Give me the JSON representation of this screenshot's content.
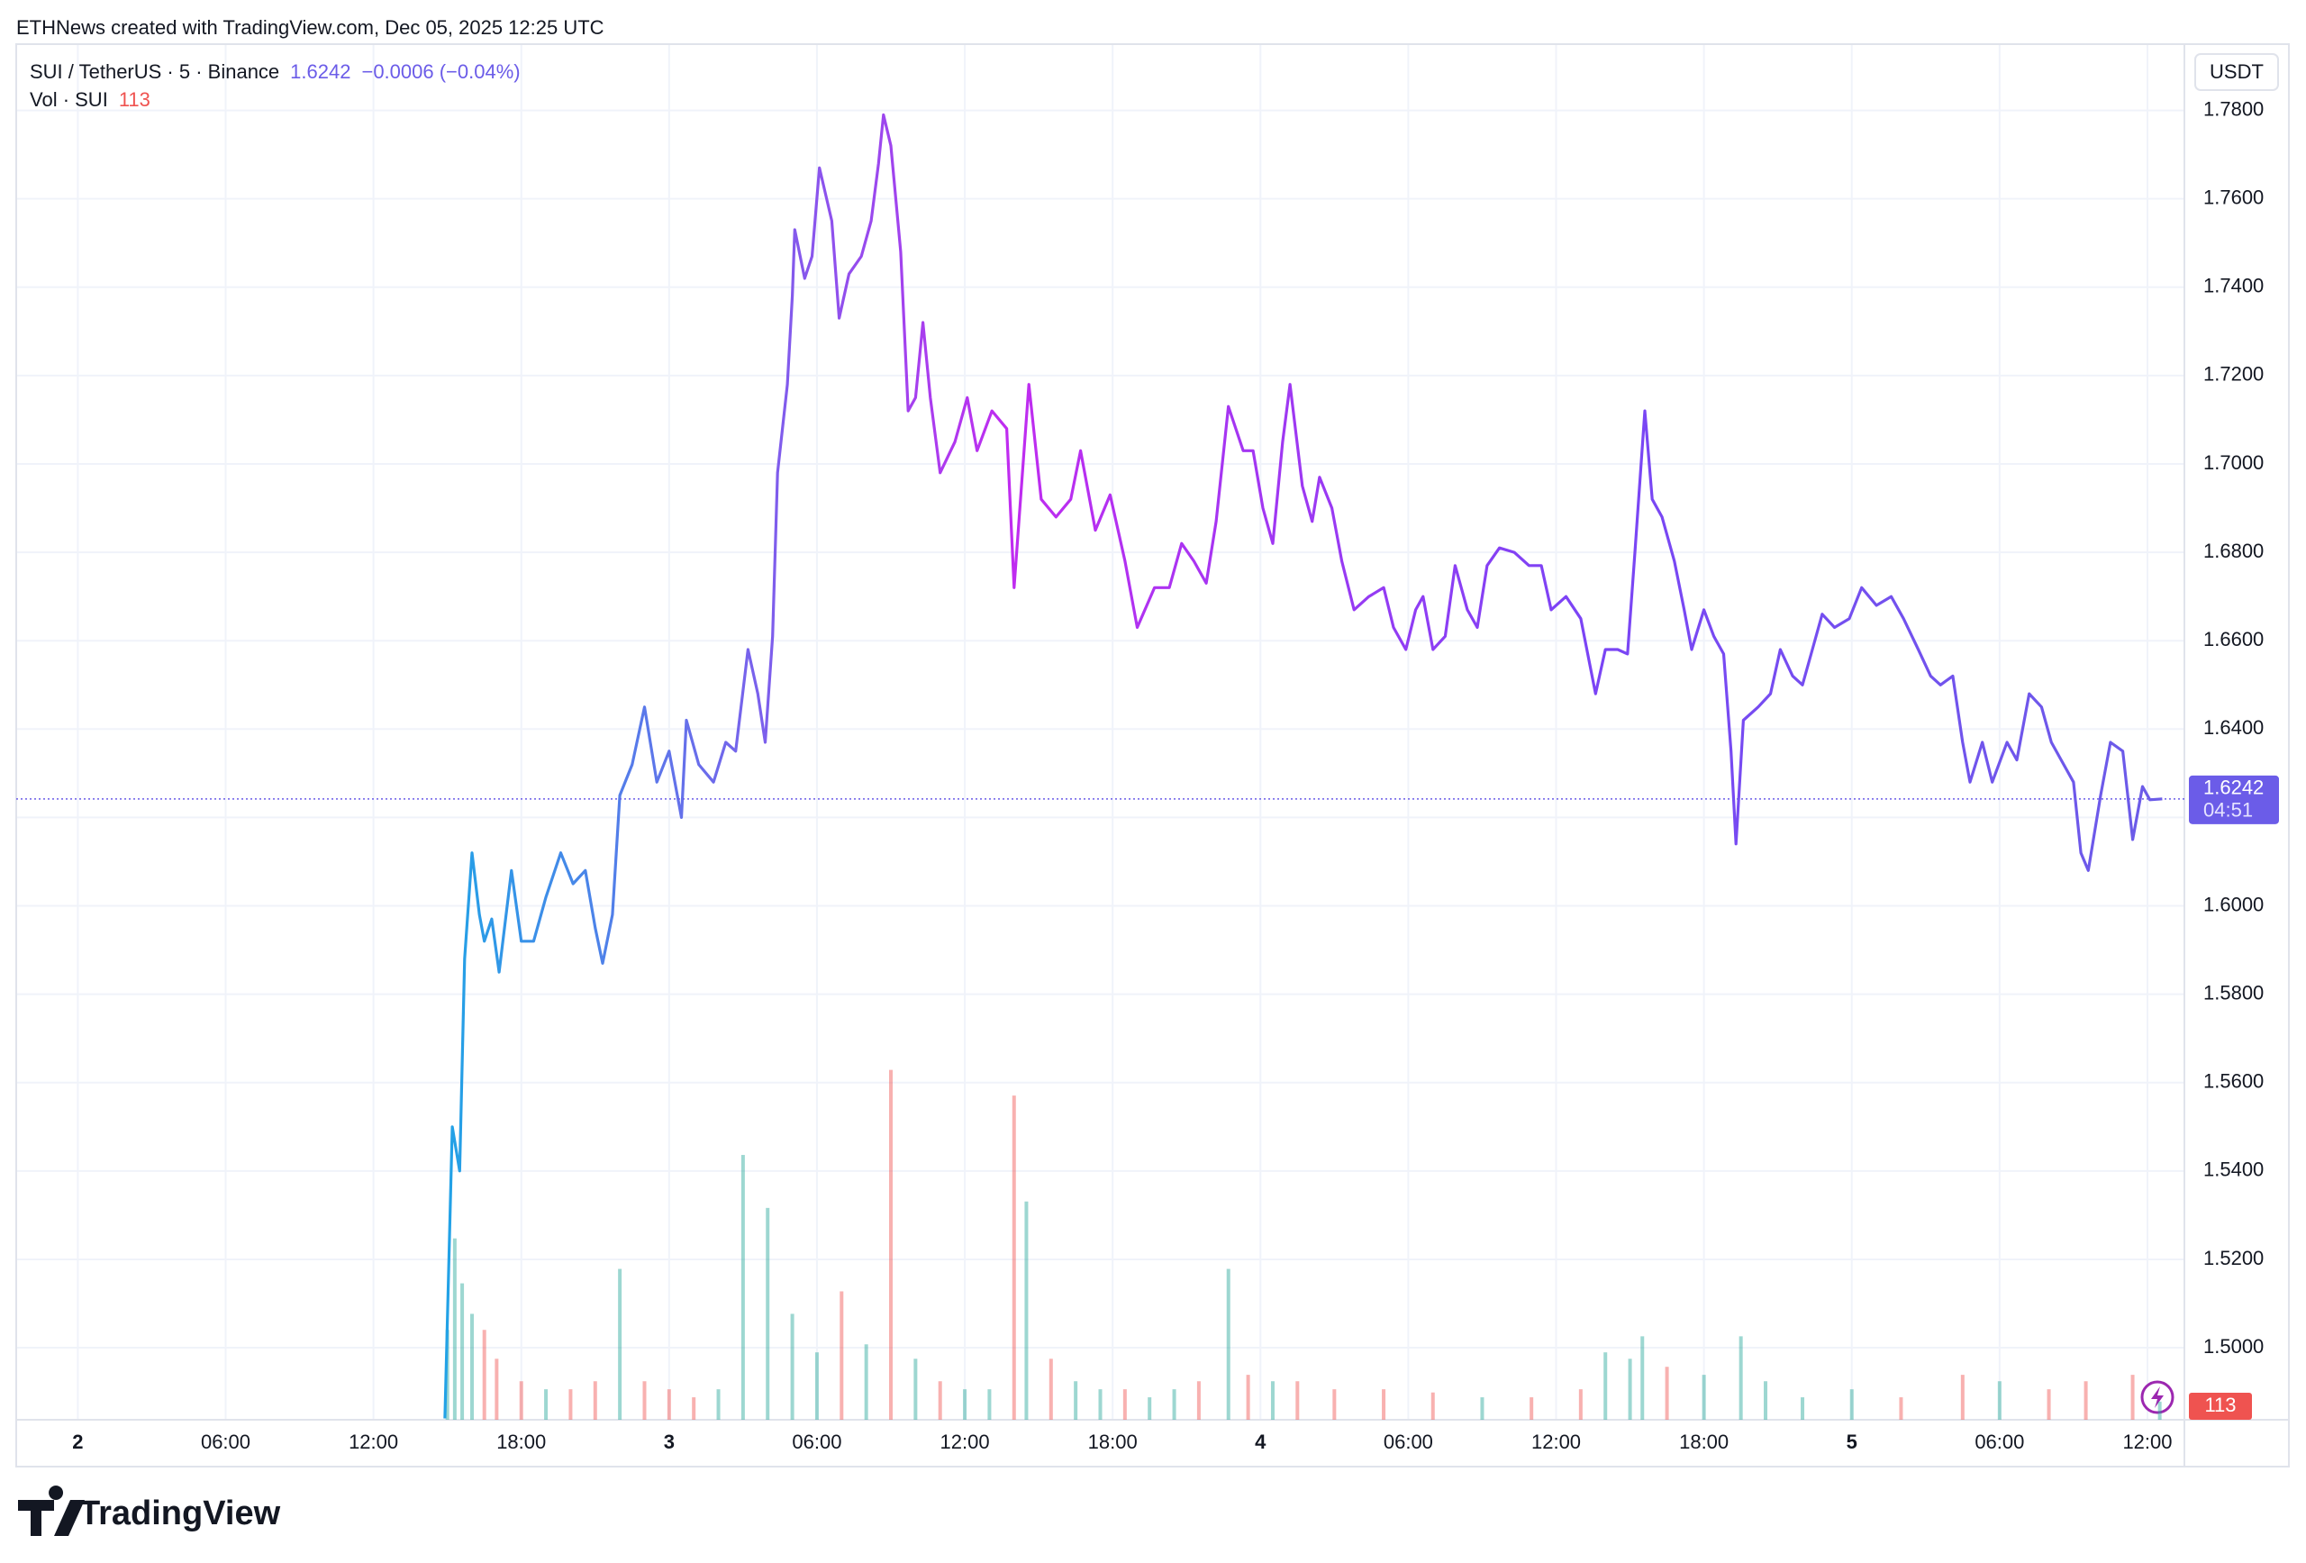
{
  "chart_data": {
    "type": "line",
    "credit": "ETHNews created with TradingView.com, Dec 05, 2025 12:25 UTC",
    "symbol": "SUI / TetherUS · 5 · Binance",
    "last_price": 1.6242,
    "change": "−0.0006 (−0.04%)",
    "countdown": "04:51",
    "currency": "USDT",
    "brand": "TradingView",
    "xlim": [
      -2.5,
      85.5
    ],
    "xticks": [
      {
        "value": 0,
        "label": "2"
      },
      {
        "value": 6,
        "label": "06:00"
      },
      {
        "value": 12,
        "label": "12:00"
      },
      {
        "value": 18,
        "label": "18:00"
      },
      {
        "value": 24,
        "label": "3"
      },
      {
        "value": 30,
        "label": "06:00"
      },
      {
        "value": 36,
        "label": "12:00"
      },
      {
        "value": 42,
        "label": "18:00"
      },
      {
        "value": 48,
        "label": "4"
      },
      {
        "value": 54,
        "label": "06:00"
      },
      {
        "value": 60,
        "label": "12:00"
      },
      {
        "value": 66,
        "label": "18:00"
      },
      {
        "value": 72,
        "label": "5"
      },
      {
        "value": 78,
        "label": "06:00"
      },
      {
        "value": 84,
        "label": "12:00"
      }
    ],
    "ylim": [
      1.4837,
      1.795
    ],
    "yticks": [
      {
        "value": 1.5,
        "label": "1.5000"
      },
      {
        "value": 1.52,
        "label": "1.5200"
      },
      {
        "value": 1.54,
        "label": "1.5400"
      },
      {
        "value": 1.56,
        "label": "1.5600"
      },
      {
        "value": 1.58,
        "label": "1.5800"
      },
      {
        "value": 1.6,
        "label": "1.6000"
      },
      {
        "value": 1.62,
        "label": "1.6200"
      },
      {
        "value": 1.64,
        "label": "1.6400"
      },
      {
        "value": 1.66,
        "label": "1.6600"
      },
      {
        "value": 1.68,
        "label": "1.6800"
      },
      {
        "value": 1.7,
        "label": "1.7000"
      },
      {
        "value": 1.72,
        "label": "1.7200"
      },
      {
        "value": 1.74,
        "label": "1.7400"
      },
      {
        "value": 1.76,
        "label": "1.7600"
      },
      {
        "value": 1.78,
        "label": "1.7800"
      }
    ],
    "grid": true,
    "gradient": [
      "#1ea5e6",
      "#c02cf0",
      "#7b44f5",
      "#6b5ce8"
    ],
    "series": [
      {
        "name": "SUI / TetherUS",
        "color": "#6b5ce8",
        "x": [
          14.9,
          15.2,
          15.5,
          15.7,
          16.0,
          16.3,
          16.5,
          16.8,
          17.1,
          17.6,
          18.0,
          18.5,
          19.0,
          19.6,
          20.1,
          20.6,
          21.0,
          21.3,
          21.7,
          22.0,
          22.5,
          23.0,
          23.5,
          24.0,
          24.5,
          24.7,
          25.2,
          25.8,
          26.3,
          26.7,
          27.2,
          27.6,
          27.9,
          28.2,
          28.4,
          28.8,
          29.0,
          29.1,
          29.5,
          29.8,
          30.1,
          30.6,
          30.9,
          31.3,
          31.8,
          32.2,
          32.5,
          32.7,
          33.0,
          33.4,
          33.7,
          34.0,
          34.3,
          34.6,
          35.0,
          35.6,
          36.1,
          36.5,
          37.1,
          37.7,
          38.0,
          38.6,
          39.1,
          39.7,
          40.3,
          40.7,
          41.3,
          41.9,
          42.5,
          43.0,
          43.7,
          44.3,
          44.8,
          45.3,
          45.8,
          46.2,
          46.7,
          47.3,
          47.7,
          48.1,
          48.5,
          48.9,
          49.2,
          49.7,
          50.1,
          50.4,
          50.9,
          51.3,
          51.8,
          52.4,
          53.0,
          53.4,
          53.9,
          54.3,
          54.6,
          55.0,
          55.5,
          55.9,
          56.4,
          56.8,
          57.2,
          57.7,
          58.3,
          58.9,
          59.4,
          59.8,
          60.4,
          61.0,
          61.6,
          62.0,
          62.5,
          62.9,
          63.2,
          63.6,
          63.9,
          64.3,
          64.8,
          65.2,
          65.5,
          66.0,
          66.4,
          66.8,
          67.1,
          67.3,
          67.6,
          68.2,
          68.7,
          69.1,
          69.6,
          70.0,
          70.4,
          70.8,
          71.3,
          71.9,
          72.4,
          73.0,
          73.6,
          74.1,
          74.7,
          75.2,
          75.6,
          76.1,
          76.5,
          76.8,
          77.3,
          77.7,
          78.3,
          78.7,
          79.2,
          79.7,
          80.1,
          80.5,
          81.0,
          81.3,
          81.6,
          82.1,
          82.5,
          83.0,
          83.4,
          83.8,
          84.1,
          84.6
        ],
        "values": [
          1.484,
          1.55,
          1.54,
          1.588,
          1.612,
          1.598,
          1.592,
          1.597,
          1.585,
          1.608,
          1.592,
          1.592,
          1.602,
          1.612,
          1.605,
          1.608,
          1.595,
          1.587,
          1.598,
          1.625,
          1.632,
          1.645,
          1.628,
          1.635,
          1.62,
          1.642,
          1.632,
          1.628,
          1.637,
          1.635,
          1.658,
          1.648,
          1.637,
          1.661,
          1.698,
          1.718,
          1.738,
          1.753,
          1.742,
          1.747,
          1.767,
          1.755,
          1.733,
          1.743,
          1.747,
          1.755,
          1.768,
          1.779,
          1.772,
          1.748,
          1.712,
          1.715,
          1.732,
          1.715,
          1.698,
          1.705,
          1.715,
          1.703,
          1.712,
          1.708,
          1.672,
          1.718,
          1.692,
          1.688,
          1.692,
          1.703,
          1.685,
          1.693,
          1.678,
          1.663,
          1.672,
          1.672,
          1.682,
          1.678,
          1.673,
          1.687,
          1.713,
          1.703,
          1.703,
          1.69,
          1.682,
          1.705,
          1.718,
          1.695,
          1.687,
          1.697,
          1.69,
          1.678,
          1.667,
          1.67,
          1.672,
          1.663,
          1.658,
          1.667,
          1.67,
          1.658,
          1.661,
          1.677,
          1.667,
          1.663,
          1.677,
          1.681,
          1.68,
          1.677,
          1.677,
          1.667,
          1.67,
          1.665,
          1.648,
          1.658,
          1.658,
          1.657,
          1.68,
          1.712,
          1.692,
          1.688,
          1.678,
          1.667,
          1.658,
          1.667,
          1.661,
          1.657,
          1.635,
          1.614,
          1.642,
          1.645,
          1.648,
          1.658,
          1.652,
          1.65,
          1.658,
          1.666,
          1.663,
          1.665,
          1.672,
          1.668,
          1.67,
          1.665,
          1.658,
          1.652,
          1.65,
          1.652,
          1.637,
          1.628,
          1.637,
          1.628,
          1.637,
          1.633,
          1.648,
          1.645,
          1.637,
          1.633,
          1.628,
          1.612,
          1.608,
          1.625,
          1.637,
          1.635,
          1.615,
          1.627,
          1.624,
          1.6242
        ]
      }
    ],
    "volume": {
      "name": "Vol · SUI",
      "up_color": "#26a69a",
      "down_color": "#ef5350",
      "vlim": [
        0,
        3000
      ],
      "x": [
        15.0,
        15.3,
        15.6,
        16.0,
        16.5,
        17.0,
        18,
        19,
        20,
        21,
        22,
        23,
        24,
        25,
        26,
        27,
        28,
        29,
        30,
        31,
        32,
        33,
        34,
        35,
        36,
        37,
        38,
        38.5,
        39.5,
        40.5,
        41.5,
        42.5,
        43.5,
        44.5,
        45.5,
        46.7,
        47.5,
        48.5,
        49.5,
        51,
        53,
        55,
        57,
        59,
        61,
        62,
        63,
        63.5,
        64.5,
        66,
        67.5,
        68.5,
        70,
        72,
        74,
        76.5,
        78,
        80,
        81.5,
        83.4,
        84.5
      ],
      "values": [
        560,
        1130,
        850,
        660,
        560,
        380,
        240,
        190,
        190,
        240,
        940,
        240,
        190,
        140,
        190,
        1650,
        1320,
        660,
        420,
        800,
        470,
        2180,
        380,
        240,
        190,
        190,
        2020,
        1360,
        380,
        240,
        190,
        190,
        140,
        190,
        240,
        940,
        280,
        240,
        240,
        190,
        190,
        170,
        140,
        140,
        190,
        420,
        380,
        520,
        330,
        280,
        520,
        240,
        140,
        190,
        140,
        280,
        240,
        190,
        240,
        280,
        113
      ]
    }
  }
}
